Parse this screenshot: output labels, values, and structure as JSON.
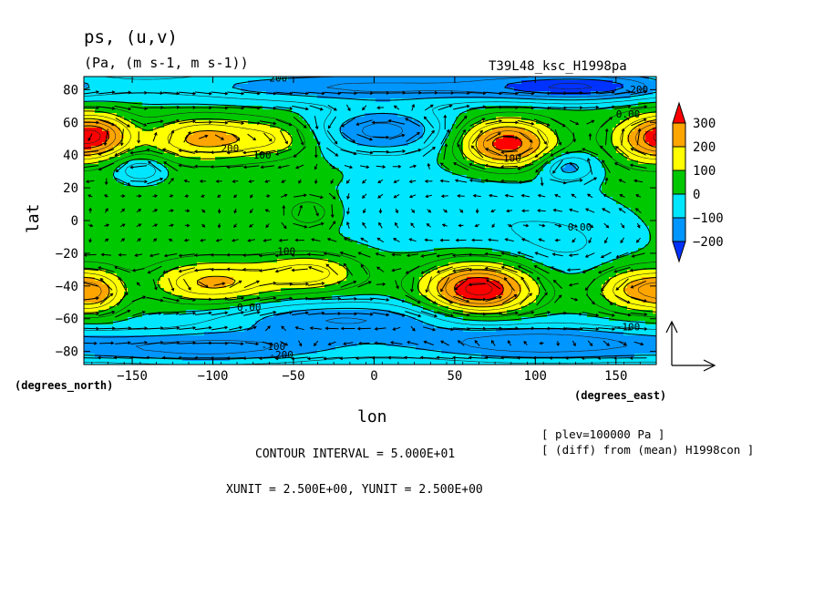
{
  "chart_data": {
    "type": "heatmap",
    "title": "ps, (u,v)",
    "units": "(Pa, (m s-1, m s-1))",
    "run_id": "T39L48_ksc_H1998pa",
    "xlabel": "lon",
    "ylabel": "lat",
    "x_unit_label": "(degrees_east)",
    "y_unit_label": "(degrees_north)",
    "xlim": [
      -180,
      175
    ],
    "ylim": [
      -88,
      88
    ],
    "x_ticks": [
      -150,
      -100,
      -50,
      0,
      50,
      100,
      150
    ],
    "y_ticks": [
      -80,
      -60,
      -40,
      -20,
      0,
      20,
      40,
      60,
      80
    ],
    "colorbar": {
      "levels": [
        300,
        200,
        100,
        0,
        -100,
        -200
      ],
      "colors": [
        "#ff0000",
        "#ffa500",
        "#ffff00",
        "#00c800",
        "#00e6ff",
        "#0096ff",
        "#0032ff"
      ]
    },
    "fill_levels": [
      -250,
      -200,
      -100,
      0,
      100,
      200,
      300
    ],
    "anomaly_centers": [
      {
        "lon": -170,
        "lat": 52,
        "amp": 230,
        "sx": 14,
        "sy": 9
      },
      {
        "lon": -105,
        "lat": 50,
        "amp": 210,
        "sx": 24,
        "sy": 9
      },
      {
        "lon": -60,
        "lat": 50,
        "amp": 110,
        "sx": 18,
        "sy": 8
      },
      {
        "lon": 82,
        "lat": 47,
        "amp": 330,
        "sx": 20,
        "sy": 10
      },
      {
        "lon": 170,
        "lat": 50,
        "amp": 230,
        "sx": 16,
        "sy": 10
      },
      {
        "lon": 65,
        "lat": -42,
        "amp": 370,
        "sx": 23,
        "sy": 11
      },
      {
        "lon": -100,
        "lat": -38,
        "amp": 200,
        "sx": 26,
        "sy": 9
      },
      {
        "lon": -40,
        "lat": -32,
        "amp": 160,
        "sx": 22,
        "sy": 8
      },
      {
        "lon": -172,
        "lat": -44,
        "amp": 160,
        "sx": 12,
        "sy": 9
      },
      {
        "lon": 165,
        "lat": -42,
        "amp": 220,
        "sx": 18,
        "sy": 9
      },
      {
        "lon": -40,
        "lat": 5,
        "amp": 80,
        "sx": 10,
        "sy": 6
      },
      {
        "lon": -145,
        "lat": 31,
        "amp": -120,
        "sx": 10,
        "sy": 5
      },
      {
        "lon": 5,
        "lat": 55,
        "amp": -180,
        "sx": 30,
        "sy": 10
      },
      {
        "lon": 120,
        "lat": 33,
        "amp": -140,
        "sx": 12,
        "sy": 6
      },
      {
        "lon": 50,
        "lat": 5,
        "amp": -60,
        "sx": 50,
        "sy": 20
      },
      {
        "lon": 120,
        "lat": -15,
        "amp": -60,
        "sx": 30,
        "sy": 15
      },
      {
        "lon": -20,
        "lat": -60,
        "amp": -160,
        "sx": 60,
        "sy": 8
      },
      {
        "lon": 100,
        "lat": -75,
        "amp": -200,
        "sx": 60,
        "sy": 8
      },
      {
        "lon": -100,
        "lat": -78,
        "amp": -180,
        "sx": 60,
        "sy": 7
      },
      {
        "lon": 0,
        "lat": 82,
        "amp": -170,
        "sx": 100,
        "sy": 7
      },
      {
        "lon": 130,
        "lat": 82,
        "amp": -200,
        "sx": 40,
        "sy": 6
      }
    ],
    "contour_labels": [
      {
        "text": "200",
        "lon": -95,
        "lat": 42
      },
      {
        "text": "100",
        "lon": -75,
        "lat": 38
      },
      {
        "text": "100",
        "lon": -60,
        "lat": -21
      },
      {
        "text": "0.00",
        "lon": -85,
        "lat": -55
      },
      {
        "text": "0.00",
        "lon": 120,
        "lat": -6
      },
      {
        "text": "0.00",
        "lon": 150,
        "lat": 63
      },
      {
        "text": "100",
        "lon": 80,
        "lat": 36
      },
      {
        "text": "-100",
        "lon": -70,
        "lat": -79
      },
      {
        "text": "-200",
        "lon": -65,
        "lat": -84
      },
      {
        "text": "-100",
        "lon": 150,
        "lat": -67
      },
      {
        "text": "200",
        "lon": -65,
        "lat": 85
      },
      {
        "text": "-200",
        "lon": 155,
        "lat": 78
      }
    ],
    "info_lines": [
      "[ plev=100000 Pa ]",
      "[ (diff) from (mean) H1998con ]"
    ],
    "footer_lines": [
      "CONTOUR INTERVAL = 5.000E+01",
      "XUNIT = 2.500E+00, YUNIT = 2.500E+00"
    ],
    "vector_grid": {
      "dlon": 10,
      "dlat": 9
    }
  }
}
